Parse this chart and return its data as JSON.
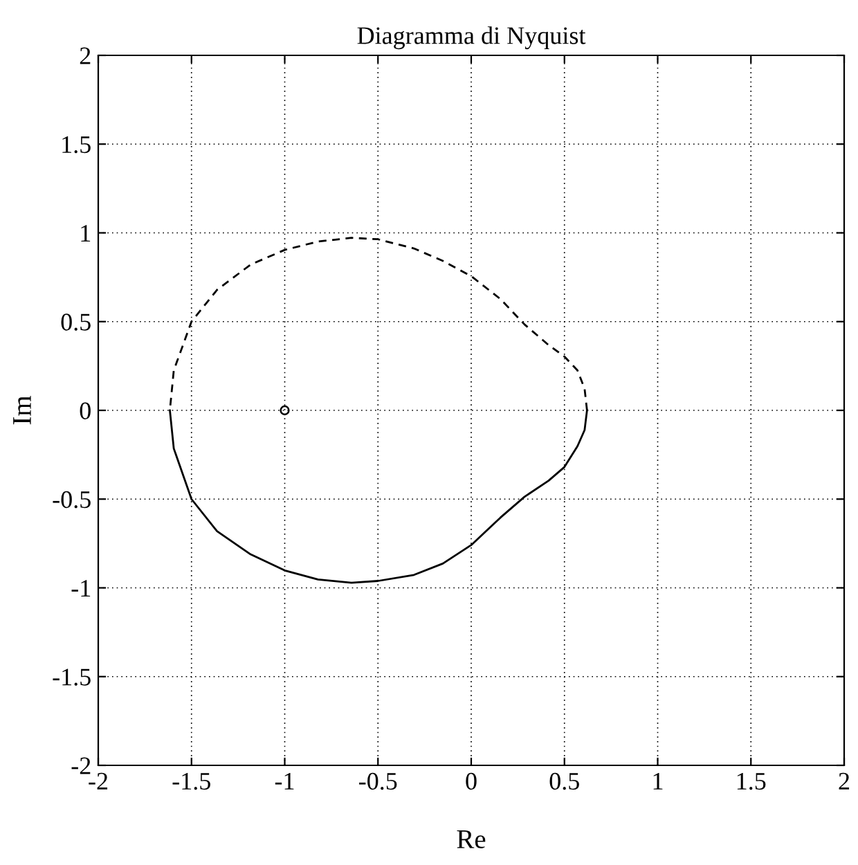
{
  "chart_data": {
    "type": "line",
    "title": "Diagramma di Nyquist",
    "xlabel": "Re",
    "ylabel": "Im",
    "xlim": [
      -2,
      2
    ],
    "ylim": [
      -2,
      2
    ],
    "xticks": [
      -2,
      -1.5,
      -1,
      -0.5,
      0,
      0.5,
      1,
      1.5,
      2
    ],
    "yticks": [
      -2,
      -1.5,
      -1,
      -0.5,
      0,
      0.5,
      1,
      1.5,
      2
    ],
    "grid": true,
    "series": [
      {
        "color": "#000000",
        "line_style": "solid",
        "marker": "none",
        "x": [
          -1.616,
          -1.595,
          -1.5,
          -1.363,
          -1.183,
          -1,
          -0.822,
          -0.642,
          -0.5,
          -0.307,
          -0.152,
          0,
          0.157,
          0.286,
          0.415,
          0.5,
          0.57,
          0.608,
          0.621
        ],
        "values": [
          0,
          -0.215,
          -0.5,
          -0.681,
          -0.811,
          -0.902,
          -0.953,
          -0.971,
          -0.961,
          -0.927,
          -0.863,
          -0.759,
          -0.604,
          -0.487,
          -0.396,
          -0.319,
          -0.202,
          -0.111,
          0
        ]
      },
      {
        "color": "#000000",
        "line_style": "dashed",
        "marker": "none",
        "x": [
          0.621,
          0.608,
          0.57,
          0.5,
          0.415,
          0.286,
          0.157,
          0,
          -0.152,
          -0.307,
          -0.5,
          -0.642,
          -0.822,
          -1,
          -1.183,
          -1.363,
          -1.5,
          -1.595,
          -1.616
        ],
        "values": [
          0,
          0.122,
          0.225,
          0.303,
          0.368,
          0.484,
          0.627,
          0.756,
          0.842,
          0.912,
          0.964,
          0.972,
          0.951,
          0.904,
          0.821,
          0.679,
          0.5,
          0.225,
          0
        ]
      },
      {
        "type": "scatter",
        "color": "#000000",
        "marker": "circle",
        "x": [
          -1
        ],
        "values": [
          0
        ]
      }
    ]
  }
}
